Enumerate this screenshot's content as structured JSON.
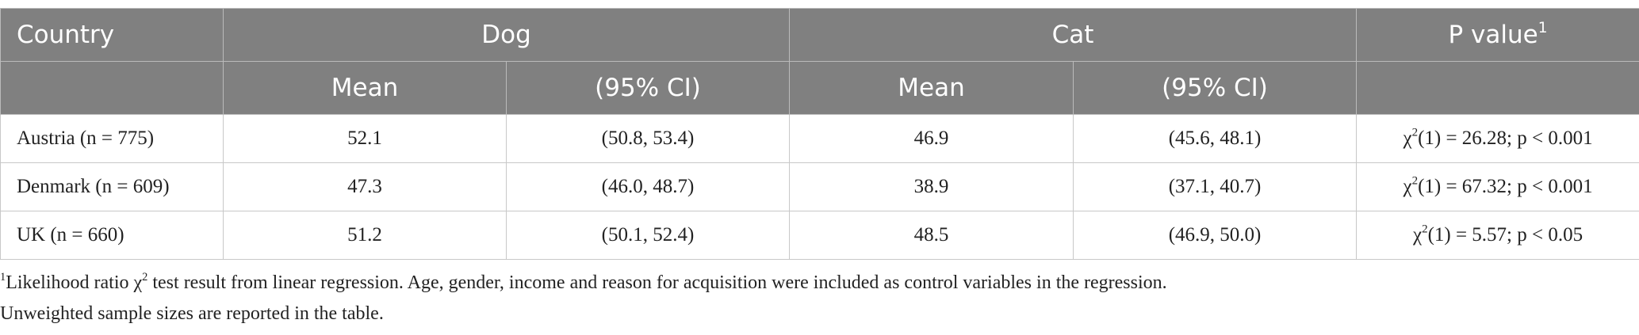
{
  "table": {
    "header": {
      "country": "Country",
      "dog": "Dog",
      "cat": "Cat",
      "p": {
        "text": "P value",
        "mark": "1"
      },
      "sub": [
        "Mean",
        "(95% CI)",
        "Mean",
        "(95% CI)"
      ]
    },
    "rows": [
      {
        "country": "Austria (n = 775)",
        "dog_mean": 52.1,
        "dog_ci": "(50.8, 53.4)",
        "cat_mean": 46.9,
        "cat_ci": "(45.6, 48.1)",
        "p": {
          "base": "χ",
          "sup": "2",
          "rest": "(1) = 26.28; p < 0.001"
        }
      },
      {
        "country": "Denmark (n = 609)",
        "dog_mean": 47.3,
        "dog_ci": "(46.0, 48.7)",
        "cat_mean": 38.9,
        "cat_ci": "(37.1, 40.7)",
        "p": {
          "base": "χ",
          "sup": "2",
          "rest": "(1) = 67.32; p < 0.001"
        }
      },
      {
        "country": "UK (n = 660)",
        "dog_mean": 51.2,
        "dog_ci": "(50.1, 52.4)",
        "cat_mean": 48.5,
        "cat_ci": "(46.9, 50.0)",
        "p": {
          "base": "χ",
          "sup": "2",
          "rest": "(1) = 5.57; p < 0.05"
        }
      }
    ]
  },
  "footnotes": [
    {
      "mark": "1",
      "text": "Likelihood ratio χ",
      "sup": "2",
      "rest": " test result from linear regression. Age, gender, income and reason for acquisition were included as control variables in the regression."
    },
    {
      "text": "Unweighted sample sizes are reported in the table."
    }
  ]
}
